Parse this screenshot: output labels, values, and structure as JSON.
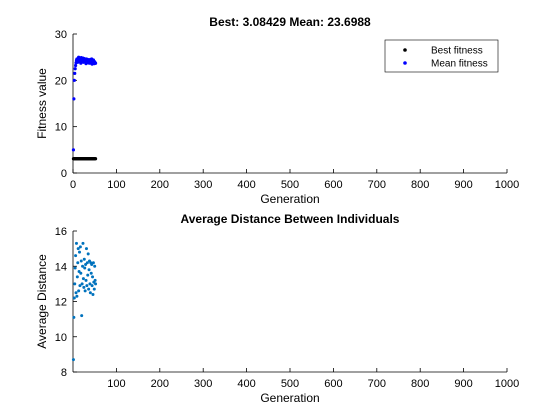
{
  "chart_data": [
    {
      "type": "scatter",
      "title": "Best: 3.08429 Mean: 23.6988",
      "xlabel": "Generation",
      "ylabel": "Fitness value",
      "xlim": [
        0,
        1000
      ],
      "ylim": [
        0,
        30
      ],
      "xticks": [
        "0",
        "100",
        "200",
        "300",
        "400",
        "500",
        "600",
        "700",
        "800",
        "900",
        "1000"
      ],
      "yticks": [
        "0",
        "10",
        "20",
        "30"
      ],
      "grid": false,
      "legend": "top-right",
      "series": [
        {
          "name": "Best fitness",
          "color": "#000000",
          "x": [
            1,
            2,
            3,
            4,
            5,
            6,
            7,
            8,
            9,
            10,
            11,
            12,
            13,
            14,
            15,
            16,
            17,
            18,
            19,
            20,
            21,
            22,
            23,
            24,
            25,
            26,
            27,
            28,
            29,
            30,
            31,
            32,
            33,
            34,
            35,
            36,
            37,
            38,
            39,
            40,
            41,
            42,
            43,
            44,
            45,
            46,
            47,
            48,
            49,
            50,
            51,
            52
          ],
          "y": [
            3.08429,
            3.08429,
            3.08429,
            3.08429,
            3.08429,
            3.08429,
            3.08429,
            3.08429,
            3.08429,
            3.08429,
            3.08429,
            3.08429,
            3.08429,
            3.08429,
            3.08429,
            3.08429,
            3.08429,
            3.08429,
            3.08429,
            3.08429,
            3.08429,
            3.08429,
            3.08429,
            3.08429,
            3.08429,
            3.08429,
            3.08429,
            3.08429,
            3.08429,
            3.08429,
            3.08429,
            3.08429,
            3.08429,
            3.08429,
            3.08429,
            3.08429,
            3.08429,
            3.08429,
            3.08429,
            3.08429,
            3.08429,
            3.08429,
            3.08429,
            3.08429,
            3.08429,
            3.08429,
            3.08429,
            3.08429,
            3.08429,
            3.08429,
            3.08429,
            3.08429
          ]
        },
        {
          "name": "Mean fitness",
          "color": "#0000ff",
          "x": [
            1,
            2,
            3,
            4,
            5,
            6,
            7,
            8,
            9,
            10,
            11,
            12,
            13,
            14,
            15,
            16,
            17,
            18,
            19,
            20,
            21,
            22,
            23,
            24,
            25,
            26,
            27,
            28,
            29,
            30,
            31,
            32,
            33,
            34,
            35,
            36,
            37,
            38,
            39,
            40,
            41,
            42,
            43,
            44,
            45,
            46,
            47,
            48,
            49,
            50,
            51,
            52
          ],
          "y": [
            5.0,
            16.0,
            20.0,
            21.5,
            22.5,
            23.2,
            23.8,
            24.3,
            24.6,
            24.2,
            23.9,
            24.7,
            25.0,
            24.1,
            24.5,
            24.8,
            24.0,
            23.7,
            24.9,
            24.3,
            24.6,
            24.1,
            24.8,
            23.9,
            24.4,
            24.7,
            24.0,
            24.5,
            24.2,
            23.6,
            24.6,
            24.3,
            24.0,
            24.5,
            23.8,
            24.1,
            24.4,
            23.7,
            24.2,
            24.5,
            23.9,
            24.3,
            24.6,
            23.5,
            24.0,
            23.8,
            24.4,
            24.1,
            23.6,
            24.0,
            23.7,
            23.7
          ]
        }
      ]
    },
    {
      "type": "scatter",
      "title": "Average Distance Between Individuals",
      "xlabel": "Generation",
      "ylabel": "Average Distance",
      "xlim": [
        0,
        1000
      ],
      "ylim": [
        8,
        16
      ],
      "xticks": [
        "100",
        "200",
        "300",
        "400",
        "500",
        "600",
        "700",
        "800",
        "900",
        "1000"
      ],
      "yticks": [
        "8",
        "10",
        "12",
        "14",
        "16"
      ],
      "grid": false,
      "series": [
        {
          "color": "#0072bd",
          "x": [
            1,
            2,
            3,
            4,
            5,
            6,
            7,
            8,
            9,
            10,
            11,
            12,
            13,
            14,
            15,
            16,
            17,
            18,
            19,
            20,
            21,
            22,
            23,
            24,
            25,
            26,
            27,
            28,
            29,
            30,
            31,
            32,
            33,
            34,
            35,
            36,
            37,
            38,
            39,
            40,
            41,
            42,
            43,
            44,
            45,
            46,
            47,
            48,
            49,
            50,
            51,
            52
          ],
          "y": [
            8.7,
            11.1,
            12.2,
            13.0,
            13.9,
            14.6,
            12.5,
            15.3,
            12.3,
            13.4,
            14.2,
            15.0,
            12.6,
            13.7,
            14.8,
            12.9,
            15.1,
            13.6,
            14.3,
            11.2,
            13.0,
            14.0,
            15.3,
            13.3,
            12.8,
            14.4,
            13.9,
            12.6,
            14.1,
            13.2,
            15.0,
            12.9,
            14.2,
            13.5,
            14.7,
            12.7,
            13.8,
            14.3,
            13.0,
            12.5,
            14.2,
            13.6,
            14.1,
            12.9,
            13.4,
            12.4,
            14.2,
            13.1,
            12.7,
            14.0,
            13.2,
            13.0
          ]
        }
      ]
    }
  ]
}
